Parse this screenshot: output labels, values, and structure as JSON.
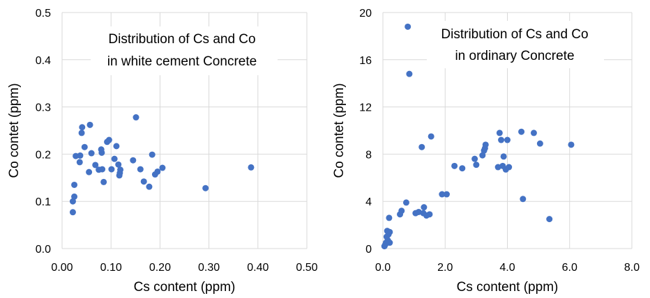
{
  "chart_data": [
    {
      "type": "scatter",
      "title_lines": [
        "Distribution of Cs and Co",
        "in white cement Concrete"
      ],
      "xlabel": "Cs content (ppm)",
      "ylabel": "Co contet (ppm)",
      "xlim": [
        0,
        0.5
      ],
      "ylim": [
        0,
        0.5
      ],
      "xticks": [
        "0.00",
        "0.10",
        "0.20",
        "0.30",
        "0.40",
        "0.50"
      ],
      "yticks": [
        "0.0",
        "0.1",
        "0.2",
        "0.3",
        "0.4",
        "0.5"
      ],
      "grid": true,
      "point_color": "#4472c4",
      "points": [
        [
          0.022,
          0.077
        ],
        [
          0.022,
          0.1
        ],
        [
          0.025,
          0.11
        ],
        [
          0.025,
          0.135
        ],
        [
          0.028,
          0.196
        ],
        [
          0.036,
          0.183
        ],
        [
          0.037,
          0.197
        ],
        [
          0.04,
          0.245
        ],
        [
          0.041,
          0.257
        ],
        [
          0.046,
          0.215
        ],
        [
          0.055,
          0.162
        ],
        [
          0.057,
          0.262
        ],
        [
          0.06,
          0.202
        ],
        [
          0.068,
          0.177
        ],
        [
          0.075,
          0.167
        ],
        [
          0.08,
          0.21
        ],
        [
          0.081,
          0.203
        ],
        [
          0.082,
          0.168
        ],
        [
          0.085,
          0.141
        ],
        [
          0.092,
          0.226
        ],
        [
          0.096,
          0.23
        ],
        [
          0.101,
          0.168
        ],
        [
          0.107,
          0.19
        ],
        [
          0.111,
          0.217
        ],
        [
          0.115,
          0.178
        ],
        [
          0.117,
          0.155
        ],
        [
          0.118,
          0.16
        ],
        [
          0.119,
          0.167
        ],
        [
          0.145,
          0.187
        ],
        [
          0.151,
          0.278
        ],
        [
          0.16,
          0.168
        ],
        [
          0.167,
          0.142
        ],
        [
          0.178,
          0.131
        ],
        [
          0.184,
          0.199
        ],
        [
          0.19,
          0.157
        ],
        [
          0.195,
          0.163
        ],
        [
          0.205,
          0.171
        ],
        [
          0.293,
          0.128
        ],
        [
          0.386,
          0.172
        ]
      ]
    },
    {
      "type": "scatter",
      "title_lines": [
        "Distribution of Cs and Co",
        "in ordinary Concrete"
      ],
      "xlabel": "Cs content (ppm)",
      "ylabel": "Co contet (ppm)",
      "xlim": [
        0,
        8
      ],
      "ylim": [
        0,
        20
      ],
      "xticks": [
        "0.0",
        "2.0",
        "4.0",
        "6.0",
        "8.0"
      ],
      "yticks": [
        "0",
        "4",
        "8",
        "12",
        "16",
        "20"
      ],
      "grid": true,
      "point_color": "#4472c4",
      "points": [
        [
          0.05,
          0.2
        ],
        [
          0.08,
          0.35
        ],
        [
          0.1,
          0.5
        ],
        [
          0.12,
          1.0
        ],
        [
          0.14,
          1.5
        ],
        [
          0.16,
          0.7
        ],
        [
          0.18,
          1.2
        ],
        [
          0.2,
          2.6
        ],
        [
          0.22,
          1.4
        ],
        [
          0.22,
          0.5
        ],
        [
          0.55,
          2.9
        ],
        [
          0.6,
          3.2
        ],
        [
          0.75,
          3.9
        ],
        [
          0.8,
          18.8
        ],
        [
          0.85,
          14.8
        ],
        [
          1.05,
          3.0
        ],
        [
          1.15,
          3.1
        ],
        [
          1.25,
          8.6
        ],
        [
          1.3,
          3.0
        ],
        [
          1.32,
          3.5
        ],
        [
          1.4,
          2.8
        ],
        [
          1.5,
          2.9
        ],
        [
          1.55,
          9.5
        ],
        [
          1.9,
          4.6
        ],
        [
          2.05,
          4.6
        ],
        [
          2.3,
          7.0
        ],
        [
          2.55,
          6.8
        ],
        [
          2.95,
          7.6
        ],
        [
          3.0,
          7.1
        ],
        [
          3.2,
          7.9
        ],
        [
          3.25,
          8.3
        ],
        [
          3.28,
          8.5
        ],
        [
          3.3,
          8.8
        ],
        [
          3.7,
          6.9
        ],
        [
          3.75,
          9.8
        ],
        [
          3.8,
          9.2
        ],
        [
          3.85,
          7.0
        ],
        [
          3.88,
          7.8
        ],
        [
          3.95,
          6.7
        ],
        [
          4.0,
          9.2
        ],
        [
          4.05,
          6.9
        ],
        [
          4.45,
          9.9
        ],
        [
          4.5,
          4.2
        ],
        [
          4.85,
          9.8
        ],
        [
          5.05,
          8.9
        ],
        [
          5.35,
          2.5
        ],
        [
          6.05,
          8.8
        ]
      ]
    }
  ]
}
